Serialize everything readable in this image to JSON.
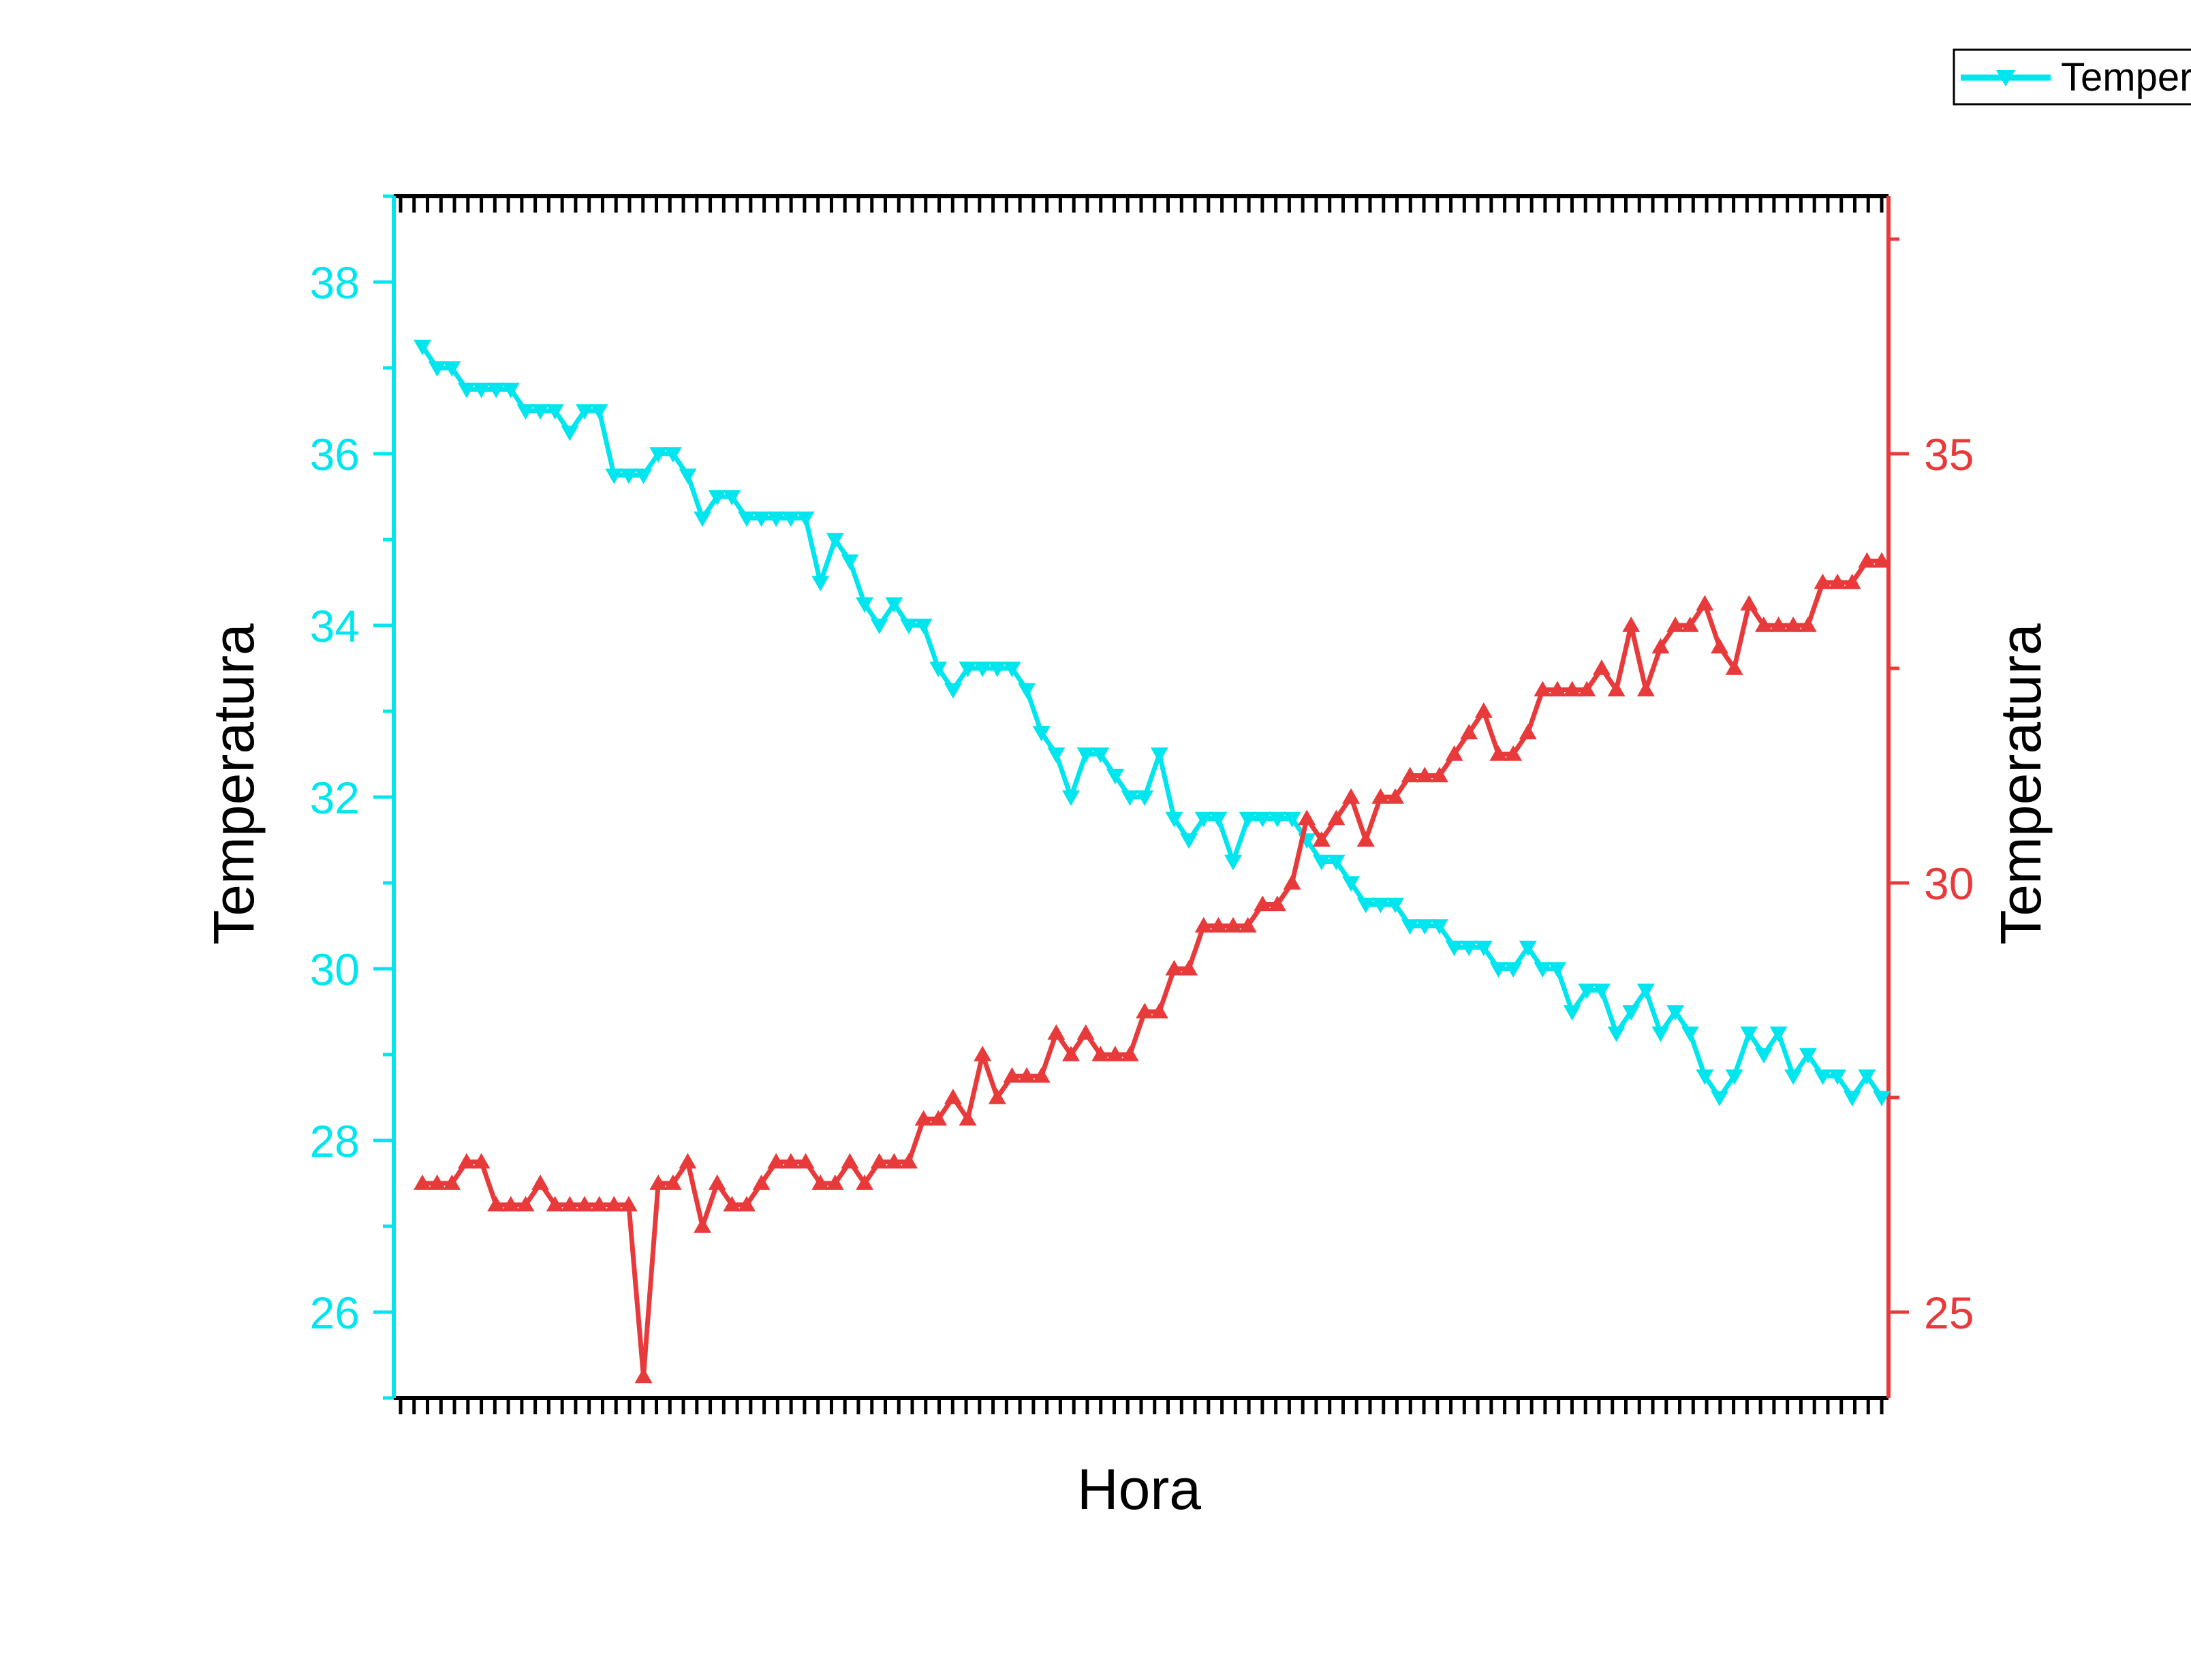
{
  "chart_data": {
    "type": "line",
    "title": "",
    "xlabel": "Hora",
    "ylabel_left": "Temperatura",
    "ylabel_right": "Temperatura",
    "ylim_left": [
      25,
      39
    ],
    "ylim_right": [
      24,
      38
    ],
    "yticks_left": [
      "26",
      "28",
      "30",
      "32",
      "34",
      "36",
      "38"
    ],
    "yticks_right": [
      "25",
      "30",
      "35"
    ],
    "grid": false,
    "legend_position": "top-right",
    "legend_label": "Temper",
    "colors": {
      "left_axis": "#00e5ee",
      "right_axis": "#e83a3a",
      "frame": "#000000"
    },
    "series": [
      {
        "axis": "left",
        "marker": "triangle-down",
        "color": "#00e5ee",
        "values": [
          37.25,
          37.0,
          37.0,
          36.75,
          36.75,
          36.75,
          36.75,
          36.5,
          36.5,
          36.5,
          36.25,
          36.5,
          36.5,
          35.75,
          35.75,
          35.75,
          36.0,
          36.0,
          35.75,
          35.25,
          35.5,
          35.5,
          35.25,
          35.25,
          35.25,
          35.25,
          35.25,
          34.5,
          35.0,
          34.75,
          34.25,
          34.0,
          34.25,
          34.0,
          34.0,
          33.5,
          33.25,
          33.5,
          33.5,
          33.5,
          33.5,
          33.25,
          32.75,
          32.5,
          32.0,
          32.5,
          32.5,
          32.25,
          32.0,
          32.0,
          32.5,
          31.75,
          31.5,
          31.75,
          31.75,
          31.25,
          31.75,
          31.75,
          31.75,
          31.75,
          31.5,
          31.25,
          31.25,
          31.0,
          30.75,
          30.75,
          30.75,
          30.5,
          30.5,
          30.5,
          30.25,
          30.25,
          30.25,
          30.0,
          30.0,
          30.25,
          30.0,
          30.0,
          29.5,
          29.75,
          29.75,
          29.25,
          29.5,
          29.75,
          29.25,
          29.5,
          29.25,
          28.75,
          28.5,
          28.75,
          29.25,
          29.0,
          29.25,
          28.75,
          29.0,
          28.75,
          28.75,
          28.5,
          28.75,
          28.5
        ]
      },
      {
        "axis": "right",
        "marker": "triangle-up",
        "color": "#e83a3a",
        "values": [
          26.5,
          26.5,
          26.5,
          26.75,
          26.75,
          26.25,
          26.25,
          26.25,
          26.5,
          26.25,
          26.25,
          26.25,
          26.25,
          26.25,
          26.25,
          24.25,
          26.5,
          26.5,
          26.75,
          26.0,
          26.5,
          26.25,
          26.25,
          26.5,
          26.75,
          26.75,
          26.75,
          26.5,
          26.5,
          26.75,
          26.5,
          26.75,
          26.75,
          26.75,
          27.25,
          27.25,
          27.5,
          27.25,
          28.0,
          27.5,
          27.75,
          27.75,
          27.75,
          28.25,
          28.0,
          28.25,
          28.0,
          28.0,
          28.0,
          28.5,
          28.5,
          29.0,
          29.0,
          29.5,
          29.5,
          29.5,
          29.5,
          29.75,
          29.75,
          30.0,
          30.75,
          30.5,
          30.75,
          31.0,
          30.5,
          31.0,
          31.0,
          31.25,
          31.25,
          31.25,
          31.5,
          31.75,
          32.0,
          31.5,
          31.5,
          31.75,
          32.25,
          32.25,
          32.25,
          32.25,
          32.5,
          32.25,
          33.0,
          32.25,
          32.75,
          33.0,
          33.0,
          33.25,
          32.75,
          32.5,
          33.25,
          33.0,
          33.0,
          33.0,
          33.0,
          33.5,
          33.5,
          33.5,
          33.75,
          33.75
        ]
      }
    ]
  }
}
